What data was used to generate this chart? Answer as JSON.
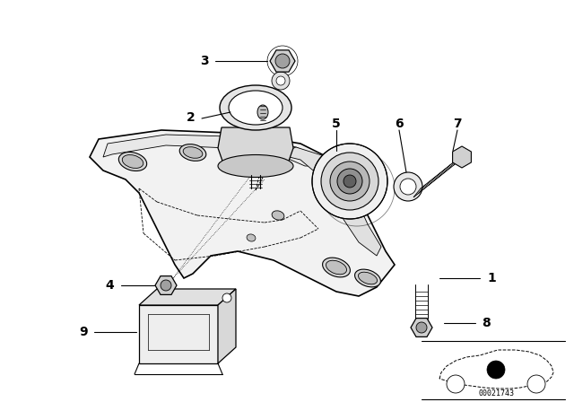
{
  "bg_color": "#ffffff",
  "line_color": "#000000",
  "fig_width": 6.4,
  "fig_height": 4.48,
  "dpi": 100,
  "diagram_code": "00021743"
}
